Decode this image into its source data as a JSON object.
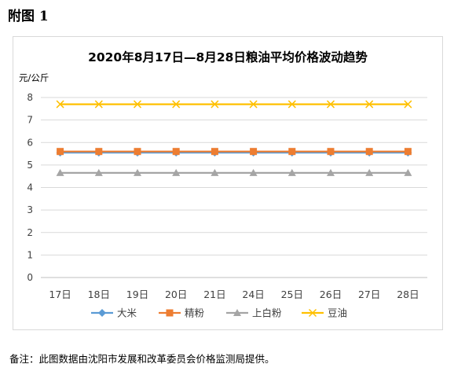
{
  "figure_label": "附图 1",
  "note": "备注：此图数据由沈阳市发展和改革委员会价格监测局提供。",
  "chart_data": {
    "type": "line",
    "title": "2020年8月17日—8月28日粮油平均价格波动趋势",
    "ylabel": "元/公斤",
    "xlabel": "",
    "ylim": [
      0,
      8
    ],
    "yticks": [
      "0",
      "1",
      "2",
      "3",
      "4",
      "5",
      "6",
      "7",
      "8"
    ],
    "categories": [
      "17日",
      "18日",
      "19日",
      "20日",
      "21日",
      "24日",
      "25日",
      "26日",
      "27日",
      "28日"
    ],
    "grid": true,
    "legend_position": "bottom",
    "series": [
      {
        "name": "大米",
        "color": "#5b9bd5",
        "marker": "diamond",
        "values": [
          5.55,
          5.55,
          5.55,
          5.55,
          5.55,
          5.55,
          5.55,
          5.55,
          5.55,
          5.55
        ]
      },
      {
        "name": "精粉",
        "color": "#ed7d31",
        "marker": "square",
        "values": [
          5.6,
          5.6,
          5.6,
          5.6,
          5.6,
          5.6,
          5.6,
          5.6,
          5.6,
          5.6
        ]
      },
      {
        "name": "上白粉",
        "color": "#a5a5a5",
        "marker": "triangle",
        "values": [
          4.65,
          4.65,
          4.65,
          4.65,
          4.65,
          4.65,
          4.65,
          4.65,
          4.65,
          4.65
        ]
      },
      {
        "name": "豆油",
        "color": "#ffc000",
        "marker": "x",
        "values": [
          7.7,
          7.7,
          7.7,
          7.7,
          7.7,
          7.7,
          7.7,
          7.7,
          7.7,
          7.7
        ]
      }
    ]
  }
}
